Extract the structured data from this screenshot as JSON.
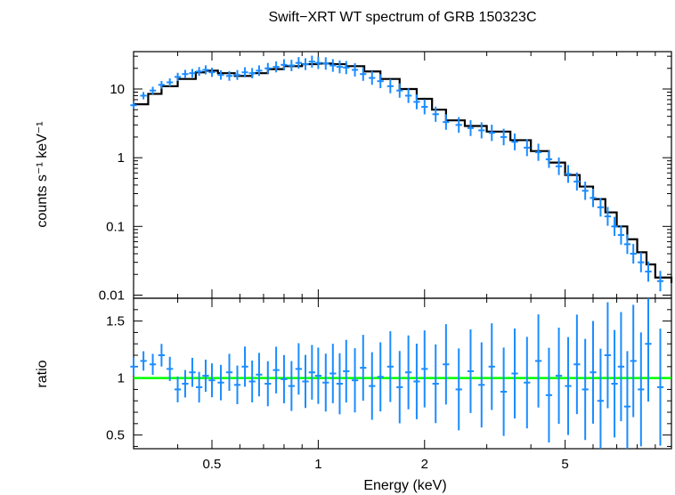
{
  "chart_data": [
    {
      "type": "scatter",
      "title": "Swift−XRT WT spectrum of GRB 150323C",
      "ylabel": "counts s⁻¹ keV⁻¹",
      "xlabel": "",
      "xscale": "log",
      "yscale": "log",
      "xlim": [
        0.3,
        10
      ],
      "ylim": [
        0.009,
        35
      ],
      "yticks": [
        {
          "value": 10,
          "label": "10"
        },
        {
          "value": 1,
          "label": "1"
        },
        {
          "value": 0.1,
          "label": "0.1"
        },
        {
          "value": 0.01,
          "label": "0.01"
        }
      ],
      "colors": {
        "data": "#1a8cff",
        "model": "#000000"
      },
      "series": [
        {
          "name": "",
          "role": "model",
          "x": [
            0.3,
            0.33,
            0.36,
            0.4,
            0.45,
            0.48,
            0.52,
            0.58,
            0.65,
            0.72,
            0.8,
            0.9,
            1.0,
            1.1,
            1.2,
            1.35,
            1.5,
            1.7,
            1.9,
            2.1,
            2.3,
            2.6,
            3.0,
            3.5,
            4.0,
            4.5,
            5.0,
            5.5,
            6.0,
            6.5,
            7.0,
            7.5,
            8.0,
            8.5,
            9.0,
            10.0
          ],
          "y": [
            6.0,
            8.5,
            11.0,
            14.0,
            17.5,
            18.5,
            17.0,
            15.5,
            17.0,
            19.5,
            21.5,
            23.0,
            23.5,
            23.0,
            21.5,
            18.0,
            14.0,
            10.0,
            7.2,
            5.0,
            3.5,
            2.9,
            2.4,
            1.8,
            1.25,
            0.85,
            0.56,
            0.38,
            0.25,
            0.16,
            0.1,
            0.065,
            0.042,
            0.028,
            0.018,
            0.015
          ]
        },
        {
          "name": "",
          "role": "data",
          "x": [
            0.3,
            0.32,
            0.34,
            0.36,
            0.38,
            0.4,
            0.42,
            0.44,
            0.46,
            0.48,
            0.5,
            0.53,
            0.56,
            0.59,
            0.62,
            0.65,
            0.68,
            0.72,
            0.76,
            0.8,
            0.84,
            0.88,
            0.92,
            0.96,
            1.0,
            1.05,
            1.1,
            1.15,
            1.2,
            1.27,
            1.34,
            1.42,
            1.5,
            1.6,
            1.7,
            1.8,
            1.9,
            2.0,
            2.15,
            2.3,
            2.5,
            2.7,
            2.9,
            3.1,
            3.35,
            3.6,
            3.9,
            4.2,
            4.5,
            4.8,
            5.1,
            5.4,
            5.7,
            6.0,
            6.3,
            6.6,
            6.9,
            7.2,
            7.5,
            7.8,
            8.2,
            8.6,
            9.3
          ],
          "y": [
            5.8,
            8.0,
            9.5,
            11.5,
            12.5,
            15.0,
            16.5,
            17.0,
            18.0,
            19.0,
            17.5,
            16.0,
            15.5,
            16.0,
            17.5,
            17.0,
            18.5,
            20.0,
            21.0,
            22.5,
            22.0,
            24.0,
            23.0,
            25.0,
            24.0,
            23.5,
            22.0,
            21.0,
            20.5,
            19.0,
            16.5,
            14.5,
            13.0,
            11.0,
            9.5,
            8.0,
            6.5,
            5.5,
            4.3,
            3.3,
            3.0,
            2.7,
            2.5,
            2.3,
            2.0,
            1.7,
            1.4,
            1.2,
            0.95,
            0.75,
            0.58,
            0.45,
            0.33,
            0.26,
            0.19,
            0.14,
            0.1,
            0.075,
            0.055,
            0.04,
            0.03,
            0.022,
            0.016
          ]
        }
      ]
    },
    {
      "type": "scatter",
      "title": "",
      "xlabel": "Energy (keV)",
      "ylabel": "ratio",
      "xscale": "log",
      "yscale": "linear",
      "xlim": [
        0.3,
        10
      ],
      "ylim": [
        0.38,
        1.7
      ],
      "xticks": [
        {
          "value": 0.5,
          "label": "0.5"
        },
        {
          "value": 1,
          "label": "1"
        },
        {
          "value": 2,
          "label": "2"
        },
        {
          "value": 5,
          "label": "5"
        }
      ],
      "yticks": [
        {
          "value": 0.5,
          "label": "0.5"
        },
        {
          "value": 1,
          "label": "1"
        },
        {
          "value": 1.5,
          "label": "1.5"
        }
      ],
      "reference_line": 1,
      "colors": {
        "data": "#1a8cff",
        "reference": "#00ff00"
      },
      "series": [
        {
          "name": "",
          "role": "data",
          "x": [
            0.3,
            0.32,
            0.34,
            0.36,
            0.38,
            0.4,
            0.42,
            0.44,
            0.46,
            0.48,
            0.5,
            0.53,
            0.56,
            0.59,
            0.62,
            0.65,
            0.68,
            0.72,
            0.76,
            0.8,
            0.84,
            0.88,
            0.92,
            0.96,
            1.0,
            1.05,
            1.1,
            1.15,
            1.2,
            1.27,
            1.34,
            1.42,
            1.5,
            1.6,
            1.7,
            1.8,
            1.9,
            2.0,
            2.15,
            2.3,
            2.5,
            2.7,
            2.9,
            3.1,
            3.35,
            3.6,
            3.9,
            4.2,
            4.5,
            4.8,
            5.1,
            5.4,
            5.7,
            6.0,
            6.3,
            6.6,
            6.9,
            7.2,
            7.5,
            7.8,
            8.2,
            8.6,
            9.3
          ],
          "y": [
            1.1,
            1.15,
            1.12,
            1.2,
            1.08,
            0.9,
            0.95,
            1.05,
            0.92,
            1.02,
            0.98,
            0.96,
            1.05,
            0.94,
            1.1,
            0.97,
            1.03,
            0.95,
            1.07,
            0.99,
            0.93,
            1.08,
            0.97,
            1.05,
            1.02,
            0.96,
            1.04,
            0.95,
            1.06,
            0.98,
            1.09,
            0.93,
            1.01,
            1.1,
            0.92,
            1.05,
            0.97,
            1.08,
            0.95,
            1.12,
            0.9,
            1.06,
            0.94,
            1.1,
            0.88,
            1.04,
            0.96,
            1.15,
            0.85,
            1.02,
            0.93,
            1.12,
            0.9,
            1.05,
            0.8,
            1.2,
            0.95,
            1.1,
            0.75,
            1.15,
            0.9,
            1.3,
            0.92
          ]
        }
      ]
    }
  ]
}
